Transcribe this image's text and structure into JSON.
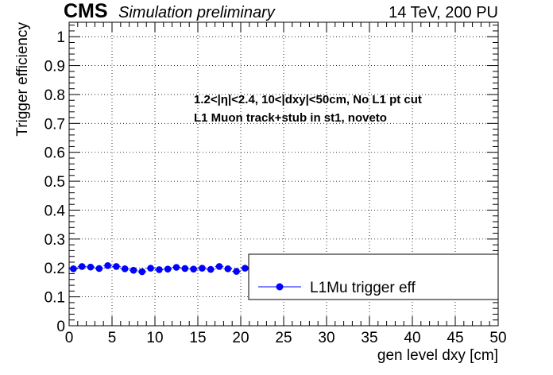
{
  "header": {
    "experiment": "CMS",
    "status": "Simulation preliminary",
    "conditions": "14 TeV, 200 PU"
  },
  "annotations": [
    "1.2<|η|<2.4, 10<|dxy|<50cm, No L1 pt cut",
    "L1 Muon track+stub in st1, noveto"
  ],
  "colors": {
    "marker": "#0000ff",
    "axis": "#000000",
    "grid": "#000000",
    "background": "#ffffff"
  },
  "chart_data": {
    "type": "scatter",
    "title": "",
    "xlabel": "gen level dxy [cm]",
    "ylabel": "Trigger efficiency",
    "xlim": [
      0,
      50
    ],
    "ylim": [
      0,
      1.05
    ],
    "grid": true,
    "grid_style": "dotted",
    "x_ticks": [
      0,
      5,
      10,
      15,
      20,
      25,
      30,
      35,
      40,
      45,
      50
    ],
    "y_ticks": [
      0,
      0.1,
      0.2,
      0.3,
      0.4,
      0.5,
      0.6,
      0.7,
      0.8,
      0.9,
      1
    ],
    "y_tick_labels": [
      "0",
      "0.1",
      "0.2",
      "0.3",
      "0.4",
      "0.5",
      "0.6",
      "0.7",
      "0.8",
      "0.9",
      "1"
    ],
    "legend": {
      "position": "bottom-right",
      "entries": [
        "L1Mu trigger eff"
      ]
    },
    "series": [
      {
        "name": "L1Mu trigger eff",
        "x": [
          0.5,
          1.5,
          2.5,
          3.5,
          4.5,
          5.5,
          6.5,
          7.5,
          8.5,
          9.5,
          10.5,
          11.5,
          12.5,
          13.5,
          14.5,
          15.5,
          16.5,
          17.5,
          18.5,
          19.5,
          20.5
        ],
        "values": [
          0.197,
          0.205,
          0.203,
          0.198,
          0.208,
          0.205,
          0.197,
          0.192,
          0.187,
          0.199,
          0.194,
          0.196,
          0.202,
          0.198,
          0.196,
          0.199,
          0.195,
          0.205,
          0.197,
          0.188,
          0.199
        ]
      }
    ]
  }
}
